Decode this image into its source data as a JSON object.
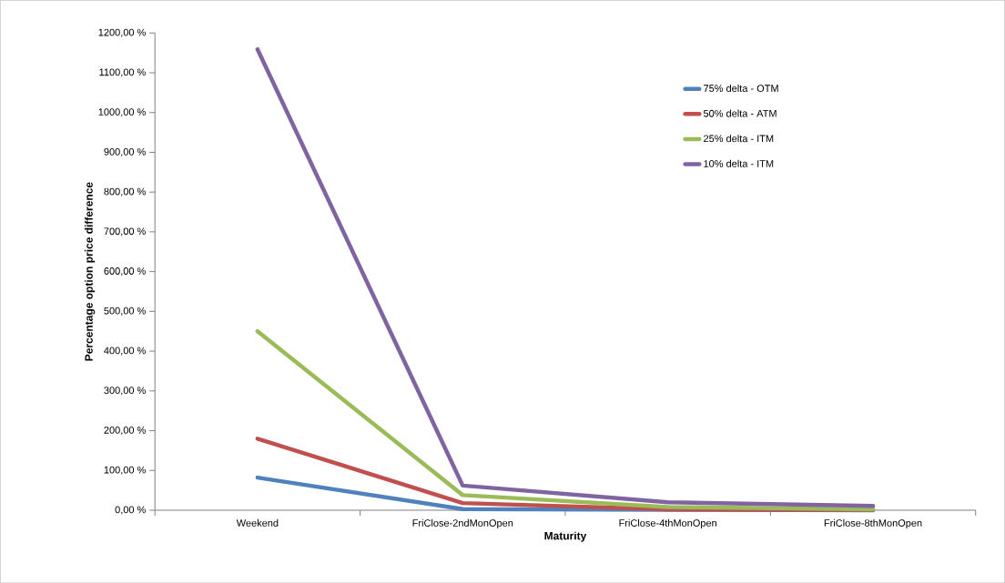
{
  "chart_data": {
    "type": "line",
    "xlabel": "Maturity",
    "ylabel": "Percentage option price difference",
    "categories": [
      "Weekend",
      "FriClose-2ndMonOpen",
      "FriClose-4thMonOpen",
      "FriClose-8thMonOpen"
    ],
    "series": [
      {
        "name": "75% delta - OTM",
        "color": "#4f81bd",
        "values": [
          82,
          3,
          1,
          0
        ]
      },
      {
        "name": "50% delta - ATM",
        "color": "#c0504d",
        "values": [
          180,
          18,
          2,
          1
        ]
      },
      {
        "name": "25% delta - ITM",
        "color": "#9bbb59",
        "values": [
          450,
          38,
          8,
          2
        ]
      },
      {
        "name": "10% delta - ITM",
        "color": "#8064a2",
        "values": [
          1159,
          62,
          20,
          11
        ]
      }
    ],
    "ylim": [
      0,
      1200
    ],
    "yticks": [
      {
        "value": 0,
        "label": "0,00 %"
      },
      {
        "value": 100,
        "label": "100,00 %"
      },
      {
        "value": 200,
        "label": "200,00 %"
      },
      {
        "value": 300,
        "label": "300,00 %"
      },
      {
        "value": 400,
        "label": "400,00 %"
      },
      {
        "value": 500,
        "label": "500,00 %"
      },
      {
        "value": 600,
        "label": "600,00 %"
      },
      {
        "value": 700,
        "label": "700,00 %"
      },
      {
        "value": 800,
        "label": "800,00 %"
      },
      {
        "value": 900,
        "label": "900,00 %"
      },
      {
        "value": 1000,
        "label": "1000,00 %"
      },
      {
        "value": 1100,
        "label": "1100,00 %"
      },
      {
        "value": 1200,
        "label": "1200,00 %"
      }
    ],
    "grid": false,
    "legend": "top right",
    "marker": "none",
    "line_style": "solid"
  }
}
